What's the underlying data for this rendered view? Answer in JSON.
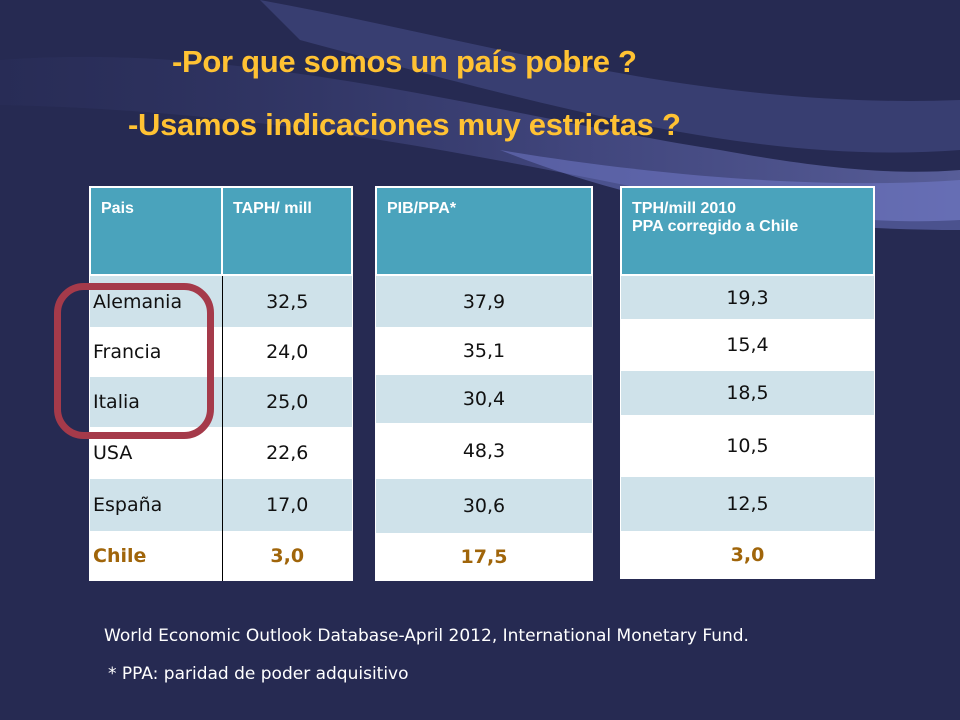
{
  "slide": {
    "title_line1": "-Por que somos  un país pobre ?",
    "title_line2": "-Usamos indicaciones muy estrictas ?"
  },
  "table1": {
    "headers": [
      "Pais",
      "TAPH/ mill"
    ],
    "rows": [
      {
        "country": "Alemania",
        "value": "32,5"
      },
      {
        "country": "Francia",
        "value": "24,0"
      },
      {
        "country": "Italia",
        "value": "25,0"
      },
      {
        "country": "USA",
        "value": "22,6"
      },
      {
        "country": "España",
        "value": "17,0"
      },
      {
        "country": "Chile",
        "value": "3,0"
      }
    ]
  },
  "table2": {
    "header": "PIB/PPA*",
    "rows": [
      "37,9",
      "35,1",
      "30,4",
      "48,3",
      "30,6",
      "17,5"
    ]
  },
  "table3": {
    "header_line1": "TPH/mill 2010",
    "header_line2": "PPA corregido a Chile",
    "rows": [
      "19,3",
      "15,4",
      "18,5",
      "10,5",
      "12,5",
      "3,0"
    ]
  },
  "footer": {
    "source": "World Economic Outlook Database-April 2012, International Monetary Fund.",
    "note": "*  PPA: paridad de poder adquisitivo"
  },
  "colors": {
    "background": "#262a52",
    "title": "#ffc233",
    "header": "#4aa3bc",
    "row_light": "#cfe2ea",
    "highlight": "#a0650a",
    "circle": "#a53a4a"
  }
}
